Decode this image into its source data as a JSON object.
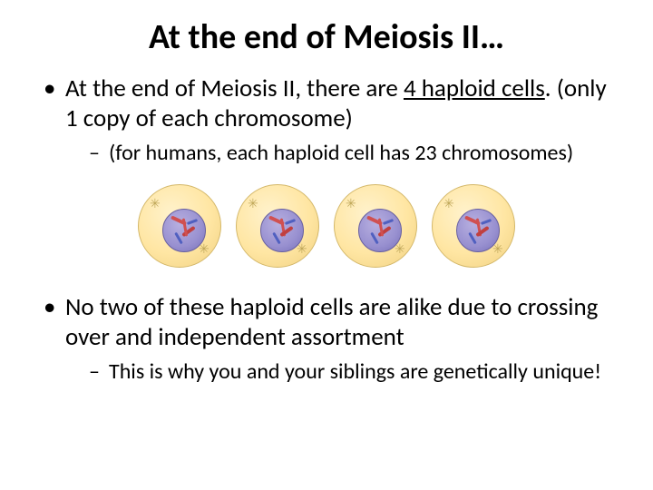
{
  "title": "At the end of Meiosis II…",
  "bullets": {
    "b1_pre": "At the end of Meiosis II, there are ",
    "b1_underlined": "4 haploid cells",
    "b1_post": ". (only 1 copy of each chromosome)",
    "b1_sub": "(for humans, each haploid cell has 23 chromosomes)",
    "b2": "No two of these haploid cells are alike due to crossing over and independent assortment",
    "b2_sub": "This is why you and your siblings are genetically unique!"
  },
  "diagram": {
    "type": "infographic",
    "cell_count": 4,
    "cell_outer_gradient": [
      "#fff2cc",
      "#ffe6a3",
      "#f0d080"
    ],
    "cell_border": "#d4b86a",
    "nucleus_gradient": [
      "#b8b0e0",
      "#9890d0",
      "#7870b8"
    ],
    "nucleus_border": "#6860a0",
    "chromatin_colors": [
      "#d05050",
      "#c04040",
      "#5060c0"
    ],
    "centrosome_glyph": "✳",
    "centrosome_color": "#c0a85a",
    "background_color": "#ffffff"
  },
  "typography": {
    "title_fontsize": 38,
    "title_weight": 700,
    "level1_fontsize": 27,
    "level2_fontsize": 24,
    "font_family": "Calibri"
  }
}
